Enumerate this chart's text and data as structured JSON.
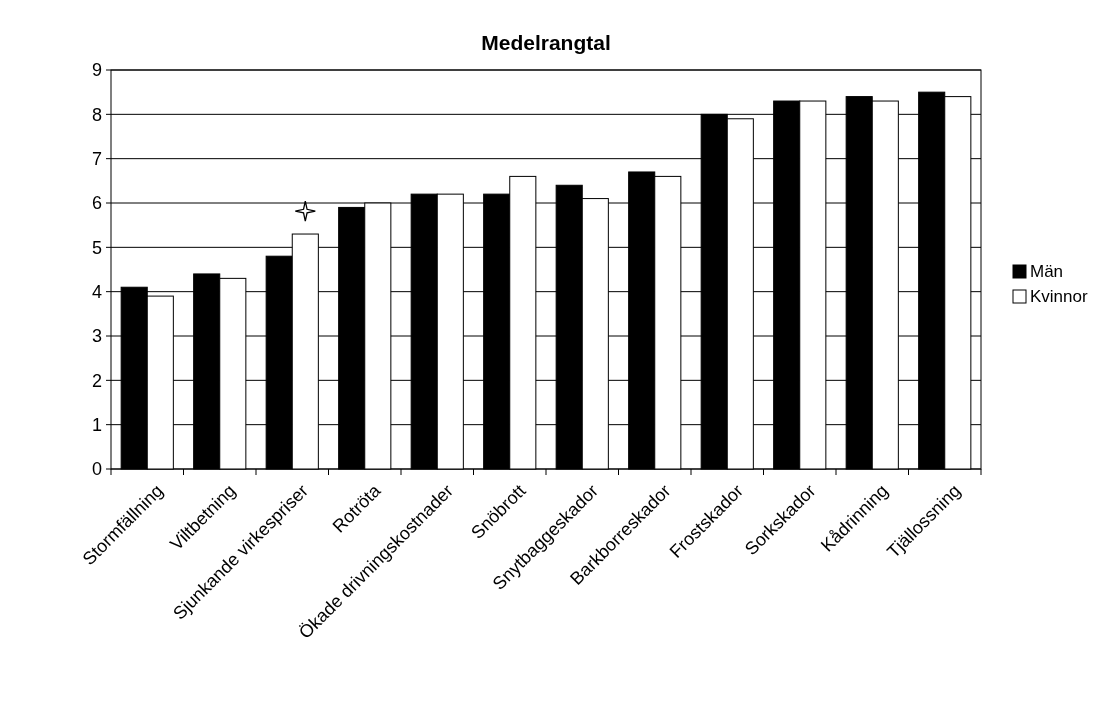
{
  "chart_data": {
    "type": "bar",
    "title": "Medelrangtal",
    "categories": [
      "Stormfällning",
      "Viltbetning",
      "Sjunkande virkespriser",
      "Rotröta",
      "Ökade drivningskostnader",
      "Snöbrott",
      "Snytbaggeskador",
      "Barkborreskador",
      "Frostskador",
      "Sorkskador",
      "Kådrinning",
      "Tjällossning"
    ],
    "series": [
      {
        "name": "Män",
        "color": "#000000",
        "values": [
          4.1,
          4.4,
          4.8,
          5.9,
          6.2,
          6.2,
          6.4,
          6.7,
          8.0,
          8.3,
          8.4,
          8.5
        ]
      },
      {
        "name": "Kvinnor",
        "color": "#ffffff",
        "values": [
          3.9,
          4.3,
          5.3,
          6.0,
          6.2,
          6.6,
          6.1,
          6.6,
          7.9,
          8.3,
          8.3,
          8.4
        ]
      }
    ],
    "ylim": [
      0,
      9
    ],
    "yticks": [
      0,
      1,
      2,
      3,
      4,
      5,
      6,
      7,
      8,
      9
    ],
    "grid": "y",
    "legend": "right"
  }
}
